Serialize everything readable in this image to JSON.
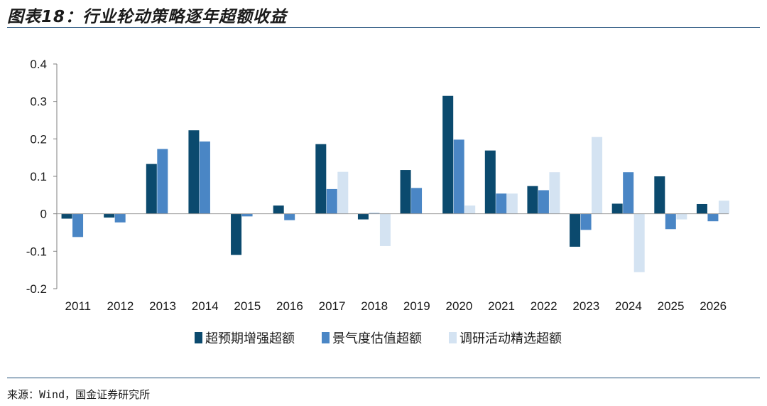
{
  "title": "图表18：行业轮动策略逐年超额收益",
  "source": "来源：Wind，国金证券研究所",
  "colors": {
    "series1": "#0b4a6e",
    "series2": "#4a86c5",
    "series3": "#d4e3f2",
    "rule": "#1f4e79"
  },
  "chart_data": {
    "type": "bar",
    "categories": [
      "2011",
      "2012",
      "2013",
      "2014",
      "2015",
      "2016",
      "2017",
      "2018",
      "2019",
      "2020",
      "2021",
      "2022",
      "2023",
      "2024",
      "2025",
      "2026"
    ],
    "series": [
      {
        "name": "超预期增强超额",
        "values": [
          -0.013,
          -0.01,
          0.133,
          0.223,
          -0.11,
          0.022,
          0.186,
          -0.015,
          0.117,
          0.315,
          0.169,
          0.074,
          -0.088,
          0.027,
          0.1,
          0.026
        ]
      },
      {
        "name": "景气度估值超额",
        "values": [
          -0.062,
          -0.023,
          0.173,
          0.193,
          -0.007,
          -0.017,
          0.066,
          0.002,
          0.069,
          0.198,
          0.054,
          0.063,
          -0.043,
          0.111,
          -0.041,
          -0.02
        ]
      },
      {
        "name": "调研活动精选超额",
        "values": [
          0,
          0,
          0,
          0,
          0,
          0,
          0.112,
          -0.086,
          0,
          0.022,
          0.054,
          0.111,
          0.205,
          -0.156,
          -0.015,
          0.035
        ]
      }
    ],
    "yticks": [
      "0.4",
      "0.3",
      "0.2",
      "0.1",
      "0",
      "-0.1",
      "-0.2"
    ],
    "ylim": [
      -0.2,
      0.4
    ],
    "legend_position": "bottom"
  }
}
